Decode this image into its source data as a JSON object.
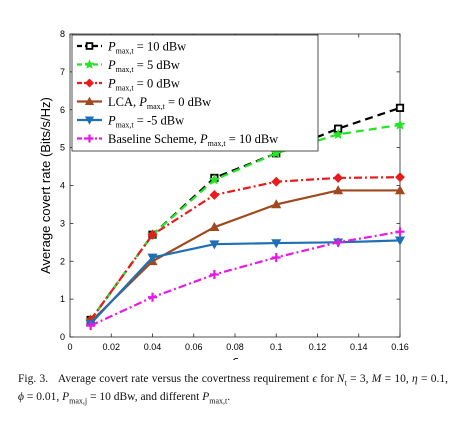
{
  "chart_data": {
    "type": "line",
    "xlabel": "ϵ",
    "ylabel": "Average covert rate (Bits/s/Hz)",
    "xlim": [
      0,
      0.16
    ],
    "ylim": [
      0,
      8
    ],
    "xticks": [
      "0",
      "0.02",
      "0.04",
      "0.06",
      "0.08",
      "0.1",
      "0.12",
      "0.14",
      "0.16"
    ],
    "yticks": [
      "0",
      "1",
      "2",
      "3",
      "4",
      "5",
      "6",
      "7",
      "8"
    ],
    "x": [
      0.01,
      0.04,
      0.07,
      0.1,
      0.13,
      0.16
    ],
    "grid": false,
    "legend_position": "top-left",
    "series": [
      {
        "name": "P_max,t = 10 dBw",
        "label_main": "P",
        "label_sub": "max,t",
        "label_rest": " = 10 dBw",
        "values": [
          0.45,
          2.7,
          4.2,
          4.85,
          5.5,
          6.05
        ],
        "color": "#000000",
        "dash": "dashed",
        "marker": "square"
      },
      {
        "name": "P_max,t = 5 dBw",
        "label_main": "P",
        "label_sub": "max,t",
        "label_rest": " = 5 dBw",
        "values": [
          0.45,
          2.7,
          4.15,
          4.85,
          5.35,
          5.6
        ],
        "color": "#22e622",
        "dash": "dashed",
        "marker": "star"
      },
      {
        "name": "P_max,t = 0 dBw",
        "label_main": "P",
        "label_sub": "max,t",
        "label_rest": " = 0 dBw",
        "values": [
          0.45,
          2.7,
          3.75,
          4.1,
          4.2,
          4.22
        ],
        "color": "#e81c1c",
        "dash": "dashdot",
        "marker": "diamond"
      },
      {
        "name": "LCA, P_max,t = 0 dBw",
        "label_prefix": "LCA, ",
        "label_main": "P",
        "label_sub": "max,t",
        "label_rest": " = 0 dBw",
        "values": [
          0.4,
          2.0,
          2.9,
          3.5,
          3.87,
          3.87
        ],
        "color": "#a0481e",
        "dash": "solid",
        "marker": "triangle-up"
      },
      {
        "name": "P_max,t = -5 dBw",
        "label_main": "P",
        "label_sub": "max,t",
        "label_rest": " = -5 dBw",
        "values": [
          0.35,
          2.1,
          2.45,
          2.48,
          2.5,
          2.55
        ],
        "color": "#1f6fb5",
        "dash": "solid",
        "marker": "triangle-down"
      },
      {
        "name": "Baseline Scheme, P_max,t = 10 dBw",
        "label_prefix": "Baseline Scheme, ",
        "label_main": "P",
        "label_sub": "max,t",
        "label_rest": " = 10 dBw",
        "values": [
          0.3,
          1.05,
          1.65,
          2.1,
          2.5,
          2.78
        ],
        "color": "#e619e6",
        "dash": "dashdot",
        "marker": "plus"
      }
    ]
  },
  "caption": {
    "fig_label": "Fig. 3.",
    "text_1": "Average covert rate versus the covertness requirement ",
    "eps": "ϵ",
    "text_2": " for ",
    "nt": "N",
    "nt_sub": "t",
    "text_3": " = 3, ",
    "m": "M",
    "text_4": " = 10, ",
    "eta": "η",
    "text_5": " = 0.1, ",
    "phi": "ϕ",
    "text_6": " = 0.01, ",
    "pj": "P",
    "pj_sub": "max,j",
    "text_7": " = 10 dBw, and different ",
    "pt": "P",
    "pt_sub": "max,t",
    "text_8": "."
  }
}
